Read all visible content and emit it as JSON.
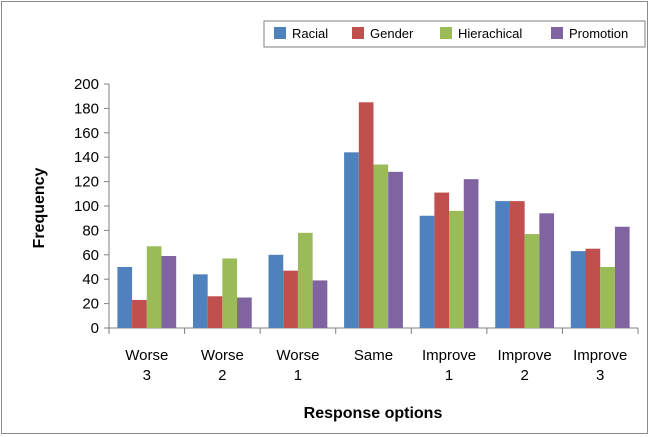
{
  "chart_data": {
    "type": "bar",
    "categories": [
      [
        "Worse",
        "3"
      ],
      [
        "Worse",
        "2"
      ],
      [
        "Worse",
        "1"
      ],
      [
        "Same"
      ],
      [
        "Improve",
        "1"
      ],
      [
        "Improve",
        "2"
      ],
      [
        "Improve",
        "3"
      ]
    ],
    "series": [
      {
        "name": "Racial",
        "color": "#4f81bd",
        "values": [
          50,
          44,
          60,
          144,
          92,
          104,
          63
        ]
      },
      {
        "name": "Gender",
        "color": "#c0504d",
        "values": [
          23,
          26,
          47,
          185,
          111,
          104,
          65
        ]
      },
      {
        "name": "Hierachical",
        "color": "#9bbb59",
        "values": [
          67,
          57,
          78,
          134,
          96,
          77,
          50
        ]
      },
      {
        "name": "Promotion",
        "color": "#8064a2",
        "values": [
          59,
          25,
          39,
          128,
          122,
          94,
          83
        ]
      }
    ],
    "xlabel": "Response options",
    "ylabel": "Frequency",
    "ylim": [
      0,
      200
    ],
    "yticks": [
      "0",
      "20",
      "40",
      "60",
      "80",
      "100",
      "120",
      "140",
      "160",
      "180",
      "200"
    ],
    "grid": false,
    "legend_position": "top-right"
  }
}
